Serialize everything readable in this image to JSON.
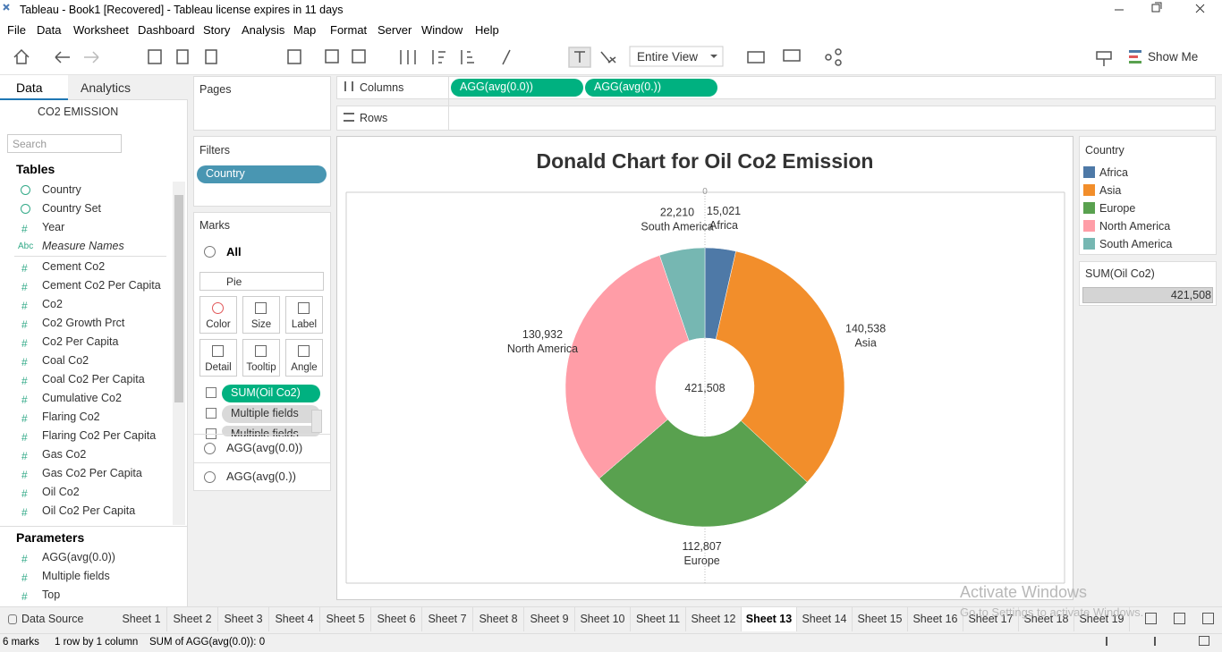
{
  "window": {
    "title": "Tableau - Book1 [Recovered] - Tableau license expires in 11 days"
  },
  "menu": [
    "File",
    "Data",
    "Worksheet",
    "Dashboard",
    "Story",
    "Analysis",
    "Map",
    "Format",
    "Server",
    "Window",
    "Help"
  ],
  "toolbar": {
    "view": "Entire View",
    "show_me": "Show Me"
  },
  "data_pane": {
    "tabs": [
      "Data",
      "Analytics"
    ],
    "datasource": "CO2 EMISSION",
    "search": "Search",
    "tables_heading": "Tables",
    "fields": [
      {
        "name": "Country"
      },
      {
        "name": "Country Set"
      },
      {
        "icon": "#",
        "name": "Year"
      },
      {
        "icon": "Abc",
        "name": "Measure Names"
      },
      {
        "icon": "#",
        "name": "Cement Co2"
      },
      {
        "icon": "#",
        "name": "Cement Co2 Per Capita"
      },
      {
        "icon": "#",
        "name": "Co2"
      },
      {
        "icon": "#",
        "name": "Co2 Growth Prct"
      },
      {
        "icon": "#",
        "name": "Co2 Per Capita"
      },
      {
        "icon": "#",
        "name": "Coal Co2"
      },
      {
        "icon": "#",
        "name": "Coal Co2 Per Capita"
      },
      {
        "icon": "#",
        "name": "Cumulative Co2"
      },
      {
        "icon": "#",
        "name": "Flaring Co2"
      },
      {
        "icon": "#",
        "name": "Flaring Co2 Per Capita"
      },
      {
        "icon": "#",
        "name": "Gas Co2"
      },
      {
        "icon": "#",
        "name": "Gas Co2 Per Capita"
      },
      {
        "icon": "#",
        "name": "Oil Co2"
      },
      {
        "icon": "#",
        "name": "Oil Co2 Per Capita"
      }
    ],
    "parameters_heading": "Parameters",
    "parameters": [
      {
        "icon": "#",
        "name": "AGG(avg(0.0))"
      },
      {
        "icon": "#",
        "name": "Multiple fields"
      },
      {
        "icon": "#",
        "name": "Top"
      }
    ]
  },
  "pages": {
    "title": "Pages"
  },
  "filters": {
    "title": "Filters",
    "pills": [
      "Country"
    ]
  },
  "marks": {
    "title": "Marks",
    "all": "All",
    "type": "Pie",
    "buttons": [
      "Color",
      "Size",
      "Label",
      "Detail",
      "Tooltip",
      "Angle"
    ],
    "pills": [
      "SUM(Oil Co2)",
      "Multiple fields",
      "Multiple fields"
    ],
    "cards": [
      "AGG(avg(0.0))",
      "AGG(avg(0.))"
    ]
  },
  "shelves": {
    "columns": "Columns",
    "column_pills": [
      "AGG(avg(0.0))",
      "AGG(avg(0.))"
    ],
    "rows": "Rows"
  },
  "chart_data": {
    "type": "pie",
    "title": "Donald Chart for Oil Co2 Emission",
    "categories": [
      "Africa",
      "Asia",
      "Europe",
      "North America",
      "South America"
    ],
    "values": [
      15021,
      140538,
      112807,
      130932,
      22210
    ],
    "value_labels": [
      "15,021",
      "140,538",
      "112,807",
      "130,932",
      "22,210"
    ],
    "colors": [
      "#4e79a7",
      "#f28e2b",
      "#59a14f",
      "#ff9da7",
      "#76b7b2"
    ],
    "center_label": {
      "value": 421508,
      "label": "421,508"
    },
    "xticks": [
      0
    ],
    "legend_title": "Country"
  },
  "size_legend": {
    "title": "SUM(Oil Co2)",
    "value": 421508,
    "label": "421,508"
  },
  "sheet_tabs": {
    "data_source": "Data Source",
    "sheets": [
      {
        "label": "Sheet 1"
      },
      {
        "label": "Sheet 2"
      },
      {
        "label": "Sheet 3"
      },
      {
        "label": "Sheet 4"
      },
      {
        "label": "Sheet 5"
      },
      {
        "label": "Sheet 6"
      },
      {
        "label": "Sheet 7"
      },
      {
        "label": "Sheet 8"
      },
      {
        "label": "Sheet 9"
      },
      {
        "label": "Sheet 10"
      },
      {
        "label": "Sheet 11"
      },
      {
        "label": "Sheet 12"
      },
      {
        "label": "Sheet 13",
        "selected": true
      },
      {
        "label": "Sheet 14"
      },
      {
        "label": "Sheet 15"
      },
      {
        "label": "Sheet 16"
      },
      {
        "label": "Sheet 17"
      },
      {
        "label": "Sheet 18"
      },
      {
        "label": "Sheet 19"
      }
    ]
  },
  "status": [
    "6 marks",
    "1 row by 1 column",
    "SUM of AGG(avg(0.0)): 0"
  ],
  "watermark": [
    "Activate Windows",
    "Go to Settings to activate Windows."
  ]
}
